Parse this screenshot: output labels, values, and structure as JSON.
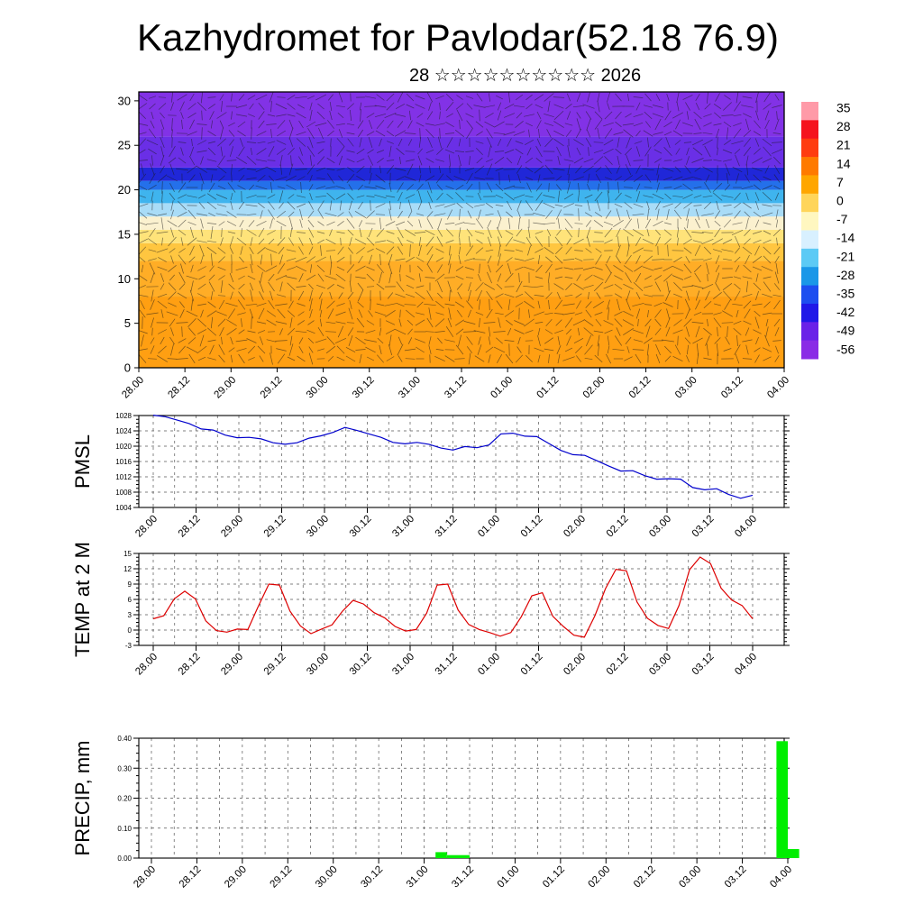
{
  "title": "Kazhydromet for Pavlodar(52.18 76.9)",
  "subtitle": "28 ☆☆☆☆☆☆☆☆☆☆ 2026",
  "colors": {
    "pmsl_line": "#0000cc",
    "temp_line": "#dd0000",
    "precip_bar": "#00ee00",
    "frame": "#000000"
  },
  "chart_data": [
    {
      "type": "heatmap",
      "title": "",
      "xlabel": "",
      "ylabel": "",
      "x_tick_labels": [
        "28.00",
        "28.12",
        "29.00",
        "29.12",
        "30.00",
        "30.12",
        "31.00",
        "31.12",
        "01.00",
        "01.12",
        "02.00",
        "02.12",
        "03.00",
        "03.12",
        "04.00"
      ],
      "y_ticks": [
        0,
        5,
        10,
        15,
        20,
        25,
        30
      ],
      "ylim": [
        0,
        31
      ],
      "colorbar_labels": [
        "35",
        "28",
        "21",
        "14",
        "7",
        "0",
        "-7",
        "-14",
        "-21",
        "-28",
        "-35",
        "-42",
        "-49",
        "-56"
      ],
      "colorbar_colors": [
        "#ff9aa8",
        "#f5141e",
        "#ff3c10",
        "#ff7a00",
        "#ffa600",
        "#ffd55a",
        "#fff7c0",
        "#d8f0ff",
        "#5ccaf5",
        "#1a97e8",
        "#1d4ef0",
        "#2018e8",
        "#6a22e8",
        "#8a2be6"
      ],
      "bands": [
        {
          "from": 0,
          "to": 8,
          "color": "#ff9f12"
        },
        {
          "from": 8,
          "to": 12,
          "color": "#ffad26"
        },
        {
          "from": 12,
          "to": 14,
          "color": "#ffc640"
        },
        {
          "from": 14,
          "to": 15.5,
          "color": "#ffe37a"
        },
        {
          "from": 15.5,
          "to": 17,
          "color": "#fbf1cf"
        },
        {
          "from": 17,
          "to": 18.5,
          "color": "#a9dcf7"
        },
        {
          "from": 18.5,
          "to": 20,
          "color": "#3fb4ee"
        },
        {
          "from": 20,
          "to": 21,
          "color": "#2470ea"
        },
        {
          "from": 21,
          "to": 22.5,
          "color": "#2027d8"
        },
        {
          "from": 22.5,
          "to": 26,
          "color": "#6a2fe6"
        },
        {
          "from": 26,
          "to": 31,
          "color": "#8232e6"
        }
      ]
    },
    {
      "type": "line",
      "title": "",
      "ylabel": "PMSL",
      "ylim": [
        1004,
        1028
      ],
      "y_ticks": [
        1004,
        1008,
        1012,
        1016,
        1020,
        1024,
        1028
      ],
      "x_tick_labels": [
        "28.00",
        "28.12",
        "29.00",
        "29.12",
        "30.00",
        "30.12",
        "31.00",
        "31.12",
        "01.00",
        "01.12",
        "02.00",
        "02.12",
        "03.00",
        "03.12",
        "04.00"
      ],
      "series": [
        {
          "values": [
            1028.1,
            1027.7,
            1026.8,
            1025.9,
            1024.5,
            1024.2,
            1022.9,
            1022.2,
            1022.3,
            1021.9,
            1020.9,
            1020.5,
            1020.9,
            1022.1,
            1022.7,
            1023.6,
            1024.9,
            1024.1,
            1023.2,
            1022.3,
            1021.0,
            1020.6,
            1021.0,
            1020.5,
            1019.5,
            1019.0,
            1019.9,
            1019.6,
            1020.3,
            1023.2,
            1023.4,
            1022.6,
            1022.5,
            1020.7,
            1018.9,
            1017.8,
            1017.6,
            1016.2,
            1014.8,
            1013.5,
            1013.6,
            1012.3,
            1011.4,
            1011.5,
            1011.4,
            1009.2,
            1008.6,
            1008.9,
            1007.4,
            1006.4,
            1007.2
          ]
        }
      ]
    },
    {
      "type": "line",
      "title": "",
      "ylabel": "TEMP at 2 M",
      "ylim": [
        -3,
        15
      ],
      "y_ticks": [
        -3,
        0,
        3,
        6,
        9,
        12,
        15
      ],
      "x_tick_labels": [
        "28.00",
        "28.12",
        "29.00",
        "29.12",
        "30.00",
        "30.12",
        "31.00",
        "31.12",
        "01.00",
        "01.12",
        "02.00",
        "02.12",
        "03.00",
        "03.12",
        "04.00"
      ],
      "series": [
        {
          "values": [
            2.2,
            2.8,
            6.1,
            7.6,
            6.1,
            1.8,
            -0.1,
            -0.4,
            0.2,
            0.1,
            4.7,
            9.0,
            8.8,
            3.7,
            0.8,
            -0.7,
            0.2,
            1.0,
            3.7,
            5.8,
            5.1,
            3.4,
            2.4,
            0.7,
            -0.2,
            0.1,
            3.3,
            8.8,
            9.0,
            3.9,
            1.1,
            0.1,
            -0.5,
            -1.2,
            -0.5,
            2.6,
            6.7,
            7.3,
            2.7,
            0.7,
            -1.0,
            -1.4,
            2.8,
            8.1,
            11.9,
            11.6,
            5.5,
            2.3,
            0.9,
            0.3,
            4.8,
            11.8,
            14.3,
            13.0,
            8.2,
            5.9,
            4.8,
            2.2
          ]
        }
      ]
    },
    {
      "type": "bar",
      "title": "",
      "ylabel": "PRECIP, mm",
      "ylim": [
        0,
        0.4
      ],
      "y_ticks": [
        "0.00",
        "0.10",
        "0.20",
        "0.30",
        "0.40"
      ],
      "x_tick_labels": [
        "28.00",
        "28.12",
        "29.00",
        "29.12",
        "30.00",
        "30.12",
        "31.00",
        "31.12",
        "01.00",
        "01.12",
        "02.00",
        "02.12",
        "03.00",
        "03.12",
        "04.00"
      ],
      "bars": [
        {
          "x_hours": 75,
          "width_hours": 3,
          "value": 0.02
        },
        {
          "x_hours": 78,
          "width_hours": 6,
          "value": 0.01
        },
        {
          "x_hours": 165,
          "width_hours": 3,
          "value": 0.39
        },
        {
          "x_hours": 168,
          "width_hours": 3,
          "value": 0.03
        }
      ]
    }
  ]
}
